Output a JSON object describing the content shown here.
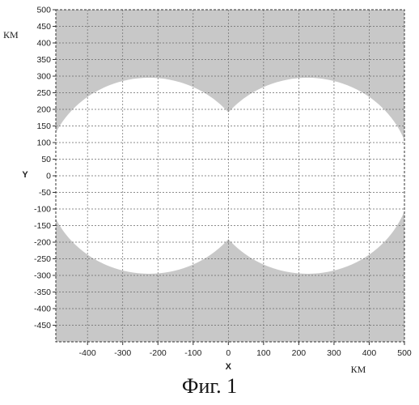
{
  "chart_data": {
    "type": "area",
    "title": "",
    "xlabel": "X",
    "ylabel": "Y",
    "x_unit": "КМ",
    "y_unit": "КМ",
    "xlim": [
      -490,
      500
    ],
    "ylim": [
      -500,
      500
    ],
    "x_ticks": [
      -400,
      -300,
      -200,
      -100,
      0,
      100,
      200,
      300,
      400,
      500
    ],
    "y_ticks": [
      500,
      450,
      400,
      350,
      300,
      250,
      200,
      150,
      100,
      50,
      0,
      -50,
      -100,
      -150,
      -200,
      -250,
      -300,
      -350,
      -400,
      -450
    ],
    "grid": true,
    "colors": {
      "background": "#c8c8c8",
      "region": "#ffffff",
      "grid": "#6a6a6a"
    },
    "regions": [
      {
        "shape": "circle",
        "center_x": -225,
        "center_y": 0,
        "radius": 295
      },
      {
        "shape": "circle",
        "center_x": 225,
        "center_y": 0,
        "radius": 295
      }
    ]
  },
  "caption": "Фиг. 1"
}
